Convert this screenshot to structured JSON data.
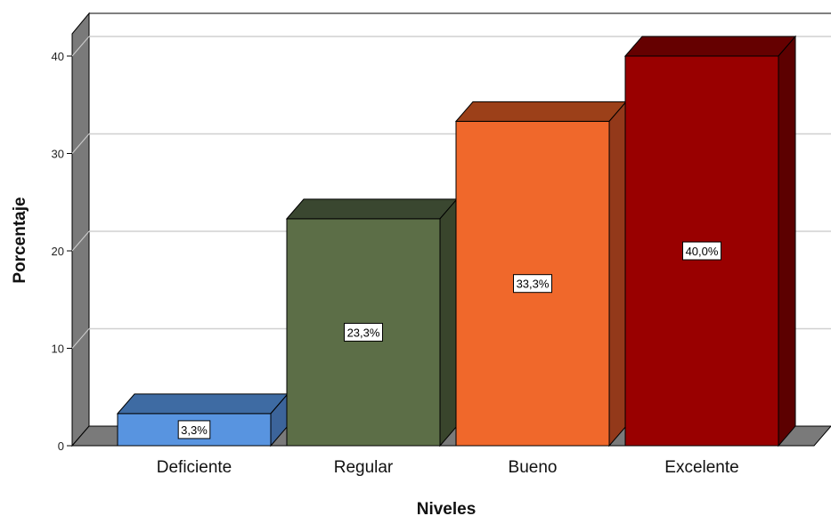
{
  "chart_data": {
    "type": "bar",
    "title": "",
    "xlabel": "Niveles",
    "ylabel": "Porcentaje",
    "ylim": [
      0,
      40
    ],
    "yticks": [
      0,
      10,
      20,
      30,
      40
    ],
    "grid": true,
    "style": "3d",
    "categories": [
      "Deficiente",
      "Regular",
      "Bueno",
      "Excelente"
    ],
    "values": [
      3.3,
      23.3,
      33.3,
      40.0
    ],
    "data_labels": [
      "3,3%",
      "23,3%",
      "33,3%",
      "40,0%"
    ],
    "colors": {
      "front": [
        "#5894e0",
        "#5c6e47",
        "#f0682b",
        "#990000"
      ],
      "top": [
        "#3e6ba3",
        "#3a4730",
        "#9c4019",
        "#650000"
      ],
      "side": [
        "#3c649a",
        "#39452c",
        "#93391a",
        "#5c0000"
      ],
      "wall": "#7a7a7a",
      "grid": "#d0d0d0"
    }
  }
}
